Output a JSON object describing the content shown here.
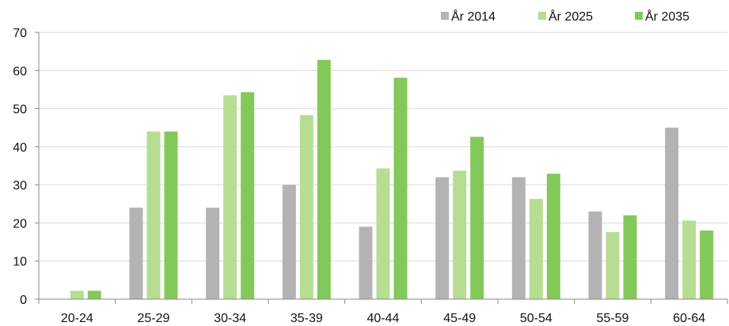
{
  "chart_data": {
    "type": "bar",
    "categories": [
      "20-24",
      "25-29",
      "30-34",
      "35-39",
      "40-44",
      "45-49",
      "50-54",
      "55-59",
      "60-64"
    ],
    "series": [
      {
        "name": "År 2014",
        "color": "#b3b3b3",
        "values": [
          0,
          24,
          24,
          30,
          19,
          32,
          32,
          23,
          45
        ]
      },
      {
        "name": "År 2025",
        "color": "#b6dd92",
        "values": [
          2.2,
          44,
          53.5,
          48.3,
          34.3,
          33.7,
          26.3,
          17.6,
          20.6
        ]
      },
      {
        "name": "År 2035",
        "color": "#83c95a",
        "values": [
          2.2,
          44,
          54.3,
          62.8,
          58.1,
          42.6,
          32.9,
          22,
          18
        ]
      }
    ],
    "ylim": [
      0,
      70
    ],
    "yticks": [
      0,
      10,
      20,
      30,
      40,
      50,
      60,
      70
    ],
    "grid": true,
    "legend_position": "top-right"
  }
}
